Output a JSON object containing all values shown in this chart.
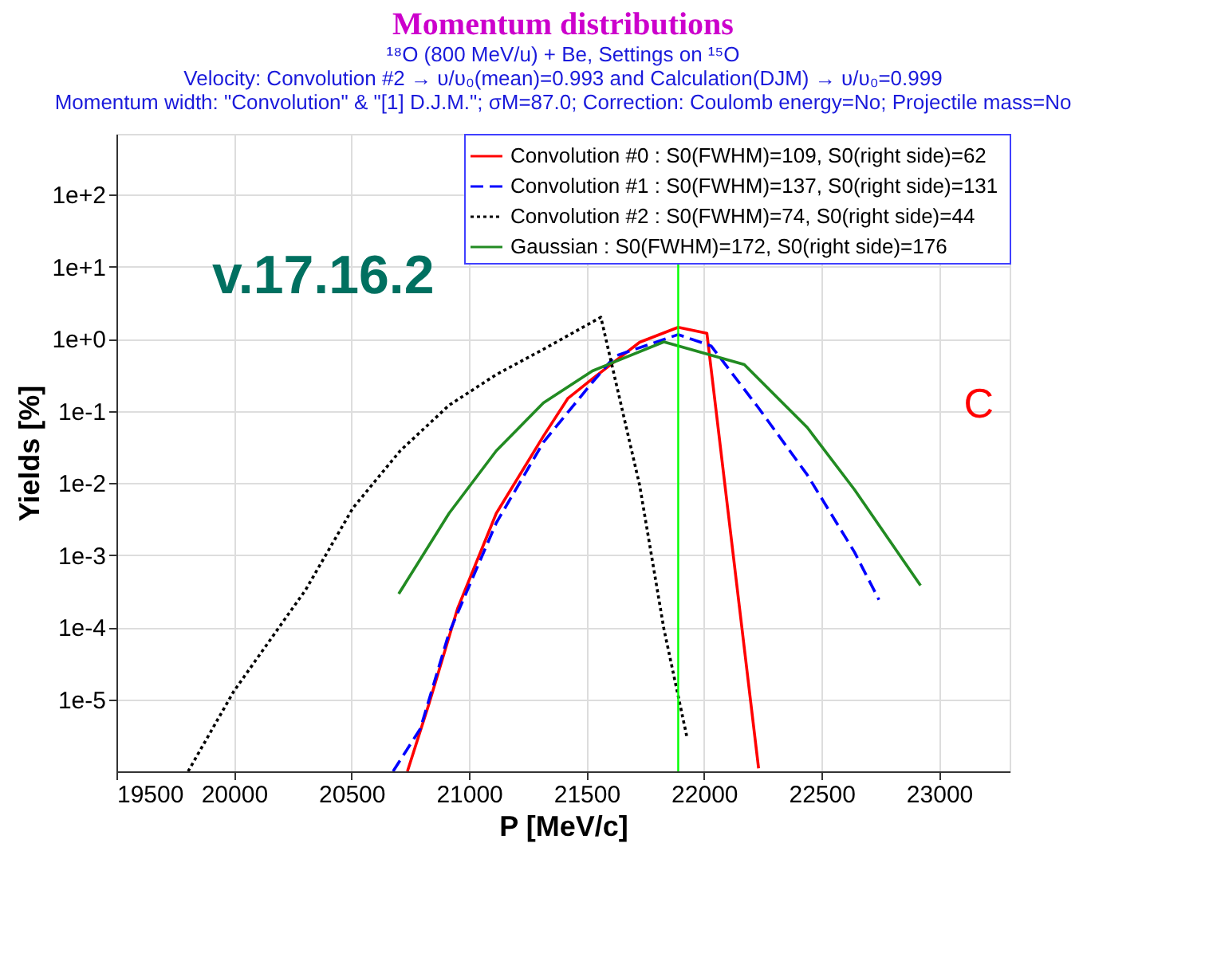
{
  "chart_data": {
    "type": "line",
    "title": "Momentum distributions",
    "subtitle": [
      "¹⁸O (800 MeV/u) + Be, Settings on ¹⁵O",
      "Velocity: Convolution #2 → υ/υ₀(mean)=0.993   and Calculation(DJM) → υ/υ₀=0.999",
      "Momentum width: \"Convolution\" & \"[1] D.J.M.\"; σM=87.0;   Correction: Coulomb energy=No; Projectile mass=No"
    ],
    "xlabel": "P [MeV/c]",
    "ylabel": "Yields [%]",
    "xlim": [
      19500,
      23300
    ],
    "xticks": [
      19500,
      20000,
      20500,
      21000,
      21500,
      22000,
      22500,
      23000
    ],
    "ylim": [
      1e-06,
      700
    ],
    "log": "y",
    "yticks": [
      {
        "value": 1e-05,
        "label": "1e-5"
      },
      {
        "value": 0.0001,
        "label": "1e-4"
      },
      {
        "value": 0.001,
        "label": "1e-3"
      },
      {
        "value": 0.01,
        "label": "1e-2"
      },
      {
        "value": 0.1,
        "label": "1e-1"
      },
      {
        "value": 1,
        "label": "1e+0"
      },
      {
        "value": 10,
        "label": "1e+1"
      },
      {
        "value": 100,
        "label": "1e+2"
      }
    ],
    "grid": true,
    "legend": "top right",
    "series": [
      {
        "name": "Convolution #0 : S0(FWHM)=109, S0(right side)=62",
        "color": "#ff0000",
        "line_style": "solid",
        "x": [
          20738,
          20829,
          20951,
          21116,
          21317,
          21421,
          21525,
          21726,
          21890,
          22012,
          22232
        ],
        "values": [
          1e-06,
          8.5e-06,
          0.00018,
          0.0038,
          0.045,
          0.15,
          0.28,
          0.9,
          1.45,
          1.2,
          1.1e-06
        ]
      },
      {
        "name": "Convolution #1 : S0(FWHM)=137, S0(right side)=131",
        "color": "#0000ff",
        "line_style": "dashed",
        "x": [
          20677,
          20793,
          20915,
          21116,
          21317,
          21525,
          21622,
          21890,
          22030,
          22232,
          22439,
          22640,
          22744
        ],
        "values": [
          1e-06,
          3.9e-06,
          8.3e-05,
          0.0028,
          0.037,
          0.25,
          0.58,
          1.15,
          0.8,
          0.11,
          0.013,
          0.0011,
          0.00024
        ]
      },
      {
        "name": "Convolution #2 : S0(FWHM)=74, S0(right side)=44",
        "color": "#000000",
        "line_style": "dotted",
        "x": [
          19805,
          20000,
          20305,
          20506,
          20707,
          20915,
          21116,
          21317,
          21561,
          21726,
          21829,
          21927
        ],
        "values": [
          1e-06,
          1.3e-05,
          0.00033,
          0.0045,
          0.028,
          0.12,
          0.32,
          0.72,
          2.0,
          0.0093,
          9.5e-05,
          3e-06
        ]
      },
      {
        "name": "Gaussian           : S0(FWHM)=172, S0(right side)=176",
        "color": "#228b22",
        "line_style": "solid",
        "x": [
          20701,
          20915,
          21116,
          21317,
          21525,
          21829,
          22171,
          22439,
          22640,
          22921
        ],
        "values": [
          0.00029,
          0.0038,
          0.028,
          0.13,
          0.36,
          0.91,
          0.44,
          0.059,
          0.0081,
          0.00038
        ]
      }
    ],
    "ref_lines": [
      {
        "axis": "x",
        "value": 21890,
        "color": "#00ff00"
      }
    ],
    "annotations": [
      "v.17.16.2",
      "C"
    ]
  }
}
